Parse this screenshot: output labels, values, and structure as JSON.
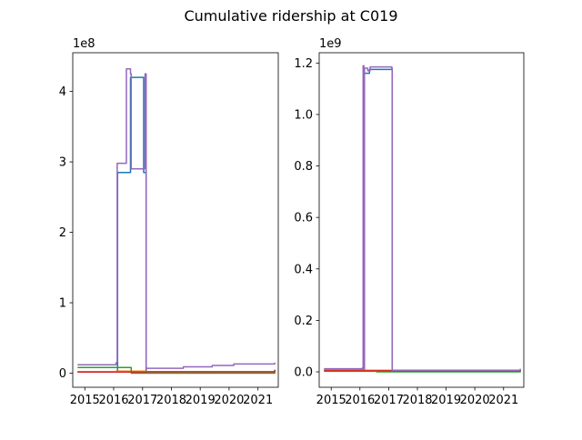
{
  "figure": {
    "title": "Cumulative ridership at C019"
  },
  "chart_data": [
    {
      "type": "line",
      "title": "",
      "xlabel": "",
      "ylabel": "",
      "offset_label": "1e8",
      "x_type": "date",
      "xlim": [
        "2014-08-01",
        "2021-09-15"
      ],
      "ylim": [
        -0.2,
        4.55
      ],
      "x_tick_labels": [
        "2015",
        "2016",
        "2017",
        "2018",
        "2019",
        "2020",
        "2021"
      ],
      "x_ticks": [
        "2015-01-01",
        "2016-01-01",
        "2017-01-01",
        "2018-01-01",
        "2019-01-01",
        "2020-01-01",
        "2021-01-01"
      ],
      "y_tick_labels": [
        "0",
        "1",
        "2",
        "3",
        "4"
      ],
      "y_ticks": [
        0,
        1,
        2,
        3,
        4
      ],
      "series_colors": [
        "#1f77b4",
        "#ff7f0e",
        "#2ca02c",
        "#d62728",
        "#9467bd"
      ],
      "series": [
        {
          "x": [
            "2014-10-01",
            "2016-02-01",
            "2016-02-20",
            "2016-06-01",
            "2016-08-01",
            "2017-01-15",
            "2017-02-15",
            "2021-08-01"
          ],
          "values": [
            0.02,
            0.02,
            2.85,
            2.85,
            4.2,
            2.85,
            0.02,
            0.05
          ]
        },
        {
          "x": [
            "2014-10-01",
            "2016-02-01",
            "2017-02-15",
            "2021-08-01"
          ],
          "values": [
            0.02,
            0.03,
            0.02,
            0.04
          ]
        },
        {
          "x": [
            "2014-10-01",
            "2016-02-01",
            "2016-08-01",
            "2016-08-10",
            "2021-08-01"
          ],
          "values": [
            0.08,
            0.08,
            0.08,
            0.0,
            0.02
          ]
        },
        {
          "x": [
            "2014-10-01",
            "2017-02-15",
            "2021-08-01"
          ],
          "values": [
            0.015,
            0.02,
            0.04
          ]
        },
        {
          "x": [
            "2014-10-01",
            "2016-02-01",
            "2016-02-15",
            "2016-06-01",
            "2016-06-10",
            "2016-08-01",
            "2016-08-10",
            "2017-01-15",
            "2017-02-01",
            "2017-02-15",
            "2018-06-01",
            "2019-06-01",
            "2020-03-01",
            "2021-08-01"
          ],
          "values": [
            0.12,
            0.15,
            2.98,
            2.98,
            4.32,
            4.25,
            2.9,
            2.9,
            4.25,
            0.07,
            0.09,
            0.11,
            0.13,
            0.15
          ]
        }
      ]
    },
    {
      "type": "line",
      "title": "",
      "xlabel": "",
      "ylabel": "",
      "offset_label": "1e9",
      "x_type": "date",
      "xlim": [
        "2014-08-01",
        "2021-09-15"
      ],
      "ylim": [
        -0.06,
        1.24
      ],
      "x_tick_labels": [
        "2015",
        "2016",
        "2017",
        "2018",
        "2019",
        "2020",
        "2021"
      ],
      "x_ticks": [
        "2015-01-01",
        "2016-01-01",
        "2017-01-01",
        "2018-01-01",
        "2019-01-01",
        "2020-01-01",
        "2021-01-01"
      ],
      "y_tick_labels": [
        "0.0",
        "0.2",
        "0.4",
        "0.6",
        "0.8",
        "1.0",
        "1.2"
      ],
      "y_ticks": [
        0.0,
        0.2,
        0.4,
        0.6,
        0.8,
        1.0,
        1.2
      ],
      "series_colors": [
        "#1f77b4",
        "#ff7f0e",
        "#2ca02c",
        "#d62728",
        "#9467bd"
      ],
      "series": [
        {
          "x": [
            "2014-10-01",
            "2016-02-10",
            "2016-02-25",
            "2016-04-01",
            "2016-05-01",
            "2017-02-15",
            "2021-08-01"
          ],
          "values": [
            0.008,
            0.008,
            1.16,
            1.16,
            1.175,
            0.005,
            0.01
          ]
        },
        {
          "x": [
            "2014-10-01",
            "2016-02-01",
            "2017-02-15",
            "2021-08-01"
          ],
          "values": [
            0.006,
            0.006,
            0.005,
            0.008
          ]
        },
        {
          "x": [
            "2014-10-01",
            "2016-02-01",
            "2016-08-01",
            "2021-08-01"
          ],
          "values": [
            0.002,
            0.002,
            0.0,
            0.004
          ]
        },
        {
          "x": [
            "2014-10-01",
            "2017-02-15",
            "2021-08-01"
          ],
          "values": [
            0.004,
            0.004,
            0.008
          ]
        },
        {
          "x": [
            "2014-10-01",
            "2016-02-01",
            "2016-02-10",
            "2016-02-20",
            "2016-02-28",
            "2016-04-01",
            "2016-04-10",
            "2016-05-01",
            "2016-05-10",
            "2017-02-10",
            "2017-02-15",
            "2021-08-01"
          ],
          "values": [
            0.012,
            0.015,
            1.19,
            0.01,
            1.18,
            1.18,
            1.17,
            1.17,
            1.185,
            1.18,
            0.006,
            0.012
          ]
        }
      ]
    }
  ]
}
